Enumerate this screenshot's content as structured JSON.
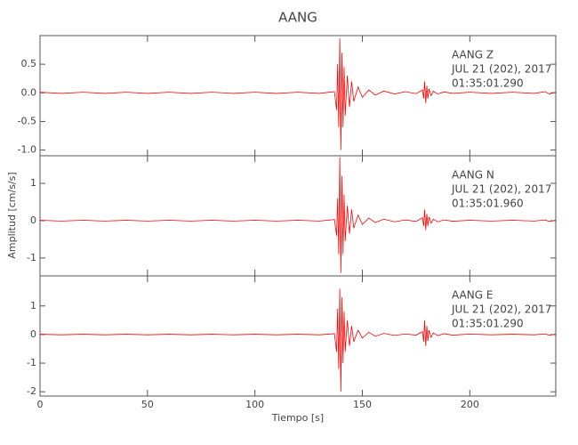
{
  "chart_data": [
    {
      "type": "line",
      "title": "AANG",
      "annotation": [
        "AANG   Z",
        "JUL 21 (202), 2017",
        "01:35:01.290"
      ],
      "ylim": [
        -1.1,
        1.0
      ],
      "yticks": [
        {
          "value": -1.0,
          "label": "-1.0"
        },
        -0.5,
        {
          "value": 0.0,
          "label": "0.0"
        },
        0.5
      ],
      "color": "#ff0000",
      "x": [
        0,
        10,
        20,
        30,
        40,
        50,
        60,
        70,
        80,
        90,
        100,
        110,
        120,
        130,
        137,
        138,
        138.5,
        139,
        139.5,
        140,
        140.5,
        141,
        141.5,
        142,
        143,
        144,
        145,
        146,
        148,
        150,
        153,
        156,
        160,
        165,
        170,
        175,
        178,
        178.5,
        179,
        179.5,
        180,
        180.5,
        181,
        182,
        183,
        185,
        188,
        192,
        200,
        210,
        220,
        230,
        235,
        237,
        240
      ],
      "values": [
        0.01,
        -0.01,
        0.01,
        -0.01,
        0.01,
        -0.01,
        0.01,
        -0.01,
        0.01,
        -0.01,
        0.01,
        -0.01,
        0.01,
        -0.01,
        0.02,
        -0.3,
        0.5,
        -0.6,
        0.95,
        -1.0,
        0.7,
        -0.6,
        0.45,
        -0.4,
        0.3,
        -0.25,
        0.2,
        -0.15,
        0.1,
        -0.08,
        0.05,
        -0.04,
        0.03,
        -0.02,
        0.02,
        -0.015,
        0.05,
        -0.1,
        0.2,
        -0.18,
        0.12,
        -0.1,
        0.07,
        -0.05,
        0.03,
        -0.02,
        0.015,
        -0.01,
        0.01,
        -0.01,
        0.01,
        -0.01,
        0.02,
        -0.02,
        0.01
      ]
    },
    {
      "type": "line",
      "ylabel": "Amplitud [cm/s/s]",
      "annotation": [
        "AANG   N",
        "JUL 21 (202), 2017",
        "01:35:01.960"
      ],
      "ylim": [
        -1.48,
        1.74
      ],
      "yticks": [
        -1,
        0,
        1
      ],
      "color": "#ff0000",
      "x": [
        0,
        10,
        20,
        30,
        40,
        50,
        60,
        70,
        80,
        90,
        100,
        110,
        120,
        130,
        137,
        138,
        138.5,
        139,
        139.5,
        140,
        140.5,
        141,
        141.5,
        142,
        143,
        144,
        145,
        146,
        148,
        150,
        153,
        156,
        160,
        165,
        170,
        175,
        178,
        178.5,
        179,
        179.5,
        180,
        180.5,
        181,
        182,
        183,
        185,
        188,
        192,
        200,
        210,
        220,
        230,
        235,
        237,
        240
      ],
      "values": [
        0.01,
        -0.01,
        0.01,
        -0.01,
        0.01,
        -0.01,
        0.01,
        -0.01,
        0.01,
        -0.01,
        0.01,
        -0.01,
        0.01,
        -0.01,
        0.03,
        -0.4,
        0.6,
        -0.9,
        1.7,
        -1.4,
        1.2,
        -0.9,
        0.7,
        -0.55,
        0.4,
        -0.35,
        0.3,
        -0.2,
        0.15,
        -0.1,
        0.07,
        -0.05,
        0.04,
        -0.03,
        0.02,
        -0.02,
        0.08,
        -0.15,
        0.3,
        -0.25,
        0.18,
        -0.14,
        0.1,
        -0.07,
        0.04,
        -0.03,
        0.02,
        -0.015,
        0.01,
        -0.01,
        0.01,
        -0.01,
        0.02,
        -0.02,
        0.01
      ]
    },
    {
      "type": "line",
      "xlabel": "Tiempo [s]",
      "annotation": [
        "AANG   E",
        "JUL 21 (202), 2017",
        "01:35:01.290"
      ],
      "ylim": [
        -2.15,
        2.05
      ],
      "yticks": [
        -2,
        -1,
        0,
        1
      ],
      "xlim": [
        0,
        240
      ],
      "xticks": [
        0,
        50,
        100,
        150,
        200
      ],
      "color": "#ff0000",
      "x": [
        0,
        10,
        20,
        30,
        40,
        50,
        60,
        70,
        80,
        90,
        100,
        110,
        120,
        130,
        137,
        138,
        138.5,
        139,
        139.5,
        140,
        140.5,
        141,
        141.5,
        142,
        143,
        144,
        145,
        146,
        148,
        150,
        153,
        156,
        160,
        165,
        170,
        175,
        178,
        178.5,
        179,
        179.5,
        180,
        180.5,
        181,
        182,
        183,
        185,
        188,
        192,
        200,
        210,
        220,
        230,
        235,
        237,
        240
      ],
      "values": [
        0.01,
        -0.01,
        0.01,
        -0.01,
        0.01,
        -0.01,
        0.01,
        -0.01,
        0.01,
        -0.01,
        0.01,
        -0.01,
        0.01,
        -0.01,
        0.03,
        -0.6,
        0.9,
        -1.2,
        1.6,
        -2.0,
        1.3,
        -1.0,
        0.8,
        -0.6,
        0.5,
        -0.4,
        0.3,
        -0.25,
        0.15,
        -0.12,
        0.08,
        -0.06,
        0.04,
        -0.03,
        0.02,
        -0.02,
        0.1,
        -0.25,
        0.5,
        -0.4,
        0.3,
        -0.22,
        0.15,
        -0.1,
        0.06,
        -0.04,
        0.03,
        -0.02,
        0.015,
        -0.01,
        0.01,
        -0.01,
        0.02,
        -0.02,
        0.01
      ]
    }
  ]
}
